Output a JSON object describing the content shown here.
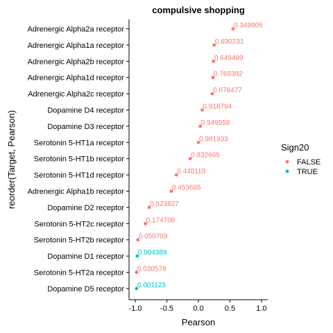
{
  "chart_data": {
    "type": "scatter",
    "title": "compulsive shopping",
    "xlabel": "Pearson",
    "ylabel": "reorder(Target, Pearson)",
    "xlim": [
      -1.0,
      1.0
    ],
    "xticks": [
      "-1.0",
      "-0.5",
      "0.0",
      "0.5",
      "1.0"
    ],
    "xtick_values": [
      -1.0,
      -0.5,
      0.0,
      0.5,
      1.0
    ],
    "grid": false,
    "legend": {
      "title": "Sign20",
      "placement": "right",
      "entries": [
        {
          "label": "FALSE",
          "color": "#F8766D"
        },
        {
          "label": "TRUE",
          "color": "#00BFC4"
        }
      ]
    },
    "points": [
      {
        "target": "Adrenergic Alpha2a receptor",
        "pearson": 0.55,
        "label": "0.349905",
        "sign20": "FALSE"
      },
      {
        "target": "Adrenergic Alpha1a receptor",
        "pearson": 0.25,
        "label": "0.690231",
        "sign20": "FALSE"
      },
      {
        "target": "Adrenergic Alpha2b receptor",
        "pearson": 0.24,
        "label": "0.649499",
        "sign20": "FALSE"
      },
      {
        "target": "Adrenergic Alpha1d receptor",
        "pearson": 0.23,
        "label": "0.769392",
        "sign20": "FALSE"
      },
      {
        "target": "Adrenergic Alpha2c receptor",
        "pearson": 0.22,
        "label": "0.678477",
        "sign20": "FALSE"
      },
      {
        "target": "Dopamine D4 receptor",
        "pearson": 0.06,
        "label": "0.918794",
        "sign20": "FALSE"
      },
      {
        "target": "Dopamine D3 receptor",
        "pearson": 0.03,
        "label": "0.949558",
        "sign20": "FALSE"
      },
      {
        "target": "Serotonin 5-HT1a receptor",
        "pearson": 0.0,
        "label": "0.981933",
        "sign20": "FALSE"
      },
      {
        "target": "Serotonin 5-HT1b receptor",
        "pearson": -0.13,
        "label": "0.832665",
        "sign20": "FALSE"
      },
      {
        "target": "Serotonin 5-HT1d receptor",
        "pearson": -0.35,
        "label": "0.440119",
        "sign20": "FALSE"
      },
      {
        "target": "Adrenergic Alpha1b receptor",
        "pearson": -0.43,
        "label": "0.453685",
        "sign20": "FALSE"
      },
      {
        "target": "Dopamine D2 receptor",
        "pearson": -0.78,
        "label": "0.023827",
        "sign20": "FALSE"
      },
      {
        "target": "Serotonin 5-HT2c receptor",
        "pearson": -0.84,
        "label": "0.174706",
        "sign20": "FALSE"
      },
      {
        "target": "Serotonin 5-HT2b receptor",
        "pearson": -0.96,
        "label": "0.050709",
        "sign20": "FALSE"
      },
      {
        "target": "Dopamine D1 receptor",
        "pearson": -0.97,
        "label": "0.004389",
        "sign20": "TRUE"
      },
      {
        "target": "Serotonin 5-HT2a receptor",
        "pearson": -0.98,
        "label": "0.030578",
        "sign20": "FALSE"
      },
      {
        "target": "Dopamine D5 receptor",
        "pearson": -0.98,
        "label": "0.001123",
        "sign20": "TRUE"
      }
    ]
  }
}
